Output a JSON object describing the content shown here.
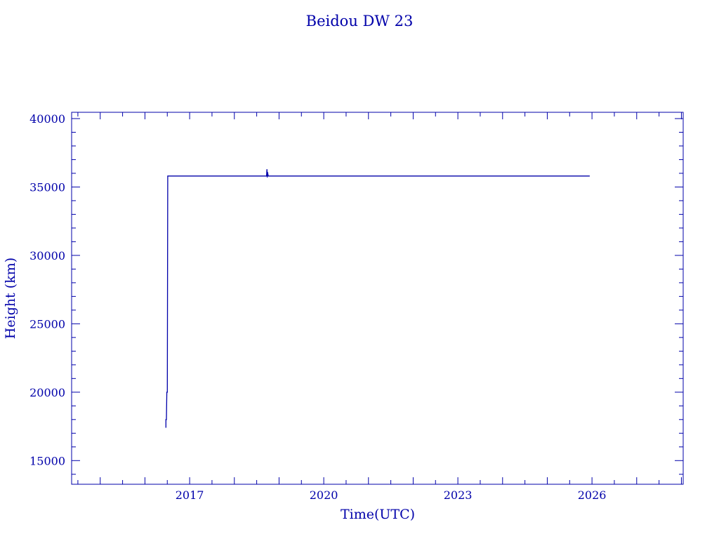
{
  "chart_data": {
    "type": "line",
    "title": "Beidou DW 23",
    "xlabel": "Time(UTC)",
    "ylabel": "Height (km)",
    "xlim": [
      2014.36,
      2028.04
    ],
    "ylim": [
      13270,
      40460
    ],
    "x_ticks": [
      2017,
      2020,
      2023,
      2026
    ],
    "x_tick_labels": [
      "2017",
      "2020",
      "2023",
      "2026"
    ],
    "y_ticks": [
      15000,
      20000,
      25000,
      30000,
      35000,
      40000
    ],
    "y_tick_labels": [
      "15000",
      "20000",
      "25000",
      "30000",
      "35000",
      "40000"
    ],
    "grid": false,
    "color": "#0000aa",
    "series": [
      {
        "x": [
          2016.47,
          2016.47,
          2016.48,
          2016.49,
          2016.5,
          2016.51,
          2018.72,
          2018.73,
          2018.735,
          2018.74,
          2018.76,
          2025.95
        ],
        "y": [
          17400,
          18000,
          18000,
          20000,
          20000,
          35800,
          35800,
          36300,
          35700,
          36100,
          35800,
          35800
        ]
      }
    ]
  }
}
